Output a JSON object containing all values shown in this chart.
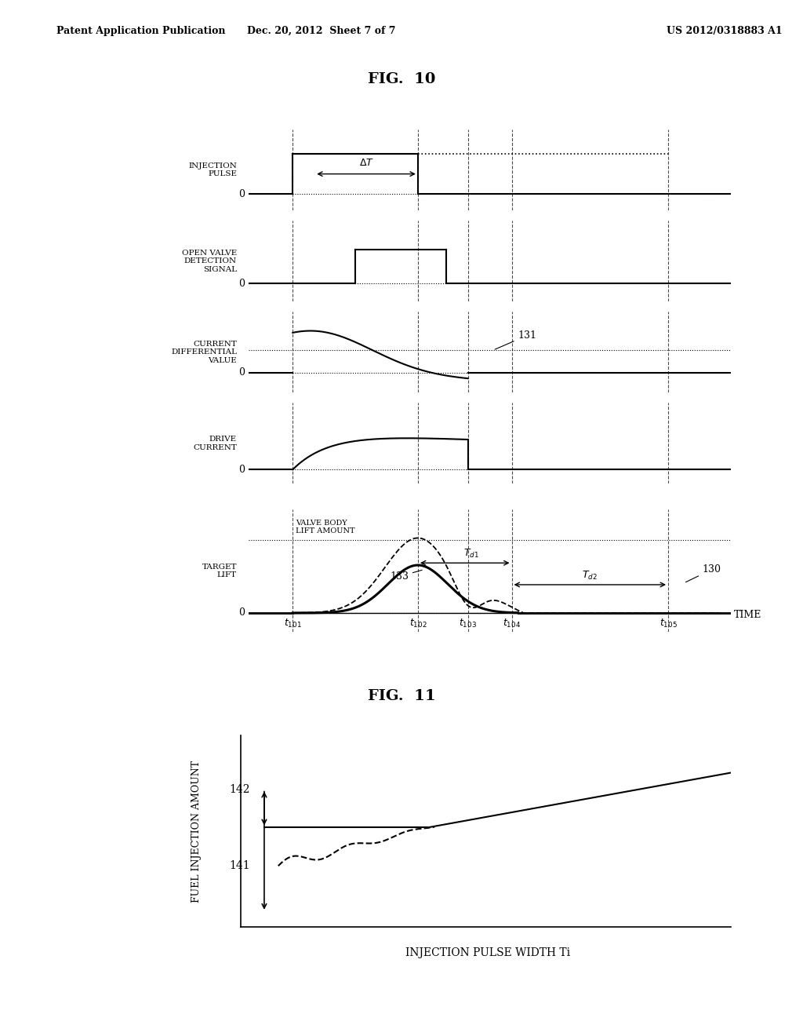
{
  "header_left": "Patent Application Publication",
  "header_mid": "Dec. 20, 2012  Sheet 7 of 7",
  "header_right": "US 2012/0318883 A1",
  "fig10_title": "FIG.  10",
  "fig11_title": "FIG.  11",
  "background_color": "#ffffff",
  "text_color": "#000000",
  "subplot_ylabels": [
    "INJECTION\nPULSE",
    "OPEN VALVE\nDETECTION\nSIGNAL",
    "CURRENT\nDIFFERENTIAL\nVALUE",
    "DRIVE\nCURRENT",
    "TARGET\nLIFT"
  ],
  "t101": 1.0,
  "t102": 3.0,
  "t103": 3.8,
  "t104": 4.5,
  "t105": 7.0,
  "tmin": 0.3,
  "tmax": 8.0
}
